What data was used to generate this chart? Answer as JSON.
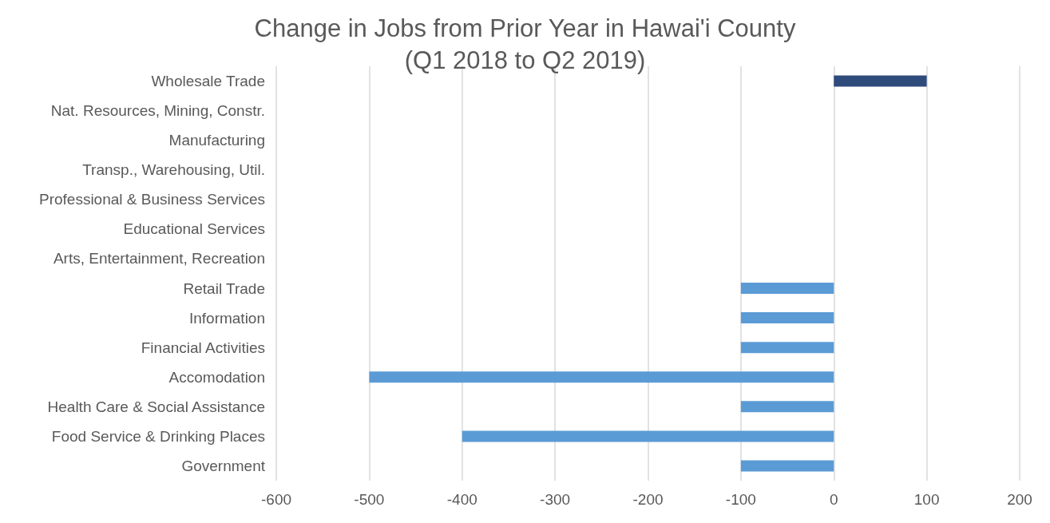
{
  "chart_data": {
    "type": "bar",
    "orientation": "horizontal",
    "title": "Change in Jobs from Prior Year in Hawai'i County\n(Q1 2018 to Q2 2019)",
    "categories": [
      "Wholesale Trade",
      "Nat. Resources, Mining, Constr.",
      "Manufacturing",
      "Transp., Warehousing, Util.",
      "Professional & Business Services",
      "Educational Services",
      "Arts, Entertainment, Recreation",
      "Retail Trade",
      "Information",
      "Financial Activities",
      "Accomodation",
      "Health Care & Social Assistance",
      "Food Service & Drinking Places",
      "Government"
    ],
    "values": [
      100,
      0,
      0,
      0,
      0,
      0,
      0,
      -100,
      -100,
      -100,
      -500,
      -100,
      -400,
      -100
    ],
    "colors": [
      "#2f4b7c",
      "#5b9bd5",
      "#5b9bd5",
      "#5b9bd5",
      "#5b9bd5",
      "#5b9bd5",
      "#5b9bd5",
      "#5b9bd5",
      "#5b9bd5",
      "#5b9bd5",
      "#5b9bd5",
      "#5b9bd5",
      "#5b9bd5",
      "#5b9bd5"
    ],
    "xlim": [
      -600,
      200
    ],
    "xticks": [
      -600,
      -500,
      -400,
      -300,
      -200,
      -100,
      0,
      100,
      200
    ],
    "grid": "x"
  }
}
